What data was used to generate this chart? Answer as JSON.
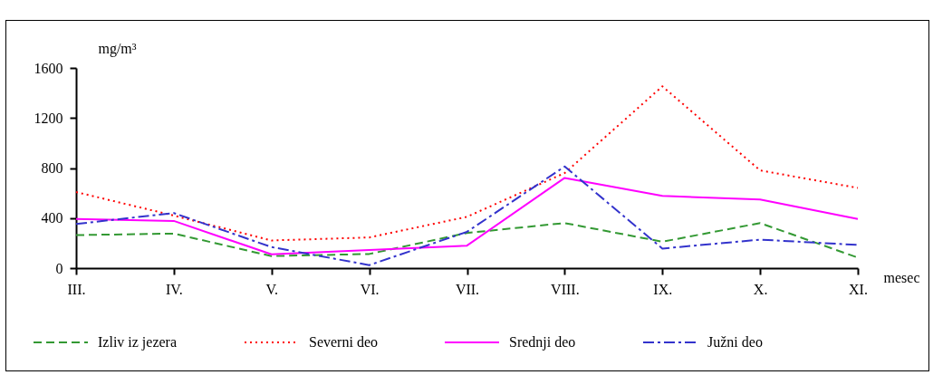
{
  "chart_data": {
    "type": "line",
    "xlabel": "mesec",
    "ylabel": "mg/m³",
    "categories": [
      "III.",
      "IV.",
      "V.",
      "VI.",
      "VII.",
      "VIII.",
      "IX.",
      "X.",
      "XI."
    ],
    "ylim": [
      0,
      1600
    ],
    "yticks": [
      0,
      400,
      800,
      1200,
      1600
    ],
    "grid": false,
    "legend": "bottom",
    "marker": "none",
    "series": [
      {
        "name": "Izliv iz jezera",
        "color": "#339933",
        "line_style": "dashed",
        "values": [
          264,
          276,
          96,
          113,
          281,
          360,
          211,
          360,
          84
        ]
      },
      {
        "name": "Severni deo",
        "color": "#ff0000",
        "line_style": "dotted",
        "values": [
          608,
          420,
          221,
          245,
          410,
          760,
          1453,
          781,
          641
        ]
      },
      {
        "name": "Srednji deo",
        "color": "#ff00ff",
        "line_style": "solid",
        "values": [
          392,
          377,
          110,
          144,
          180,
          721,
          577,
          548,
          392
        ]
      },
      {
        "name": "Južni deo",
        "color": "#3333cc",
        "line_style": "dashdot",
        "values": [
          353,
          440,
          168,
          24,
          290,
          812,
          156,
          228,
          185
        ]
      }
    ]
  }
}
